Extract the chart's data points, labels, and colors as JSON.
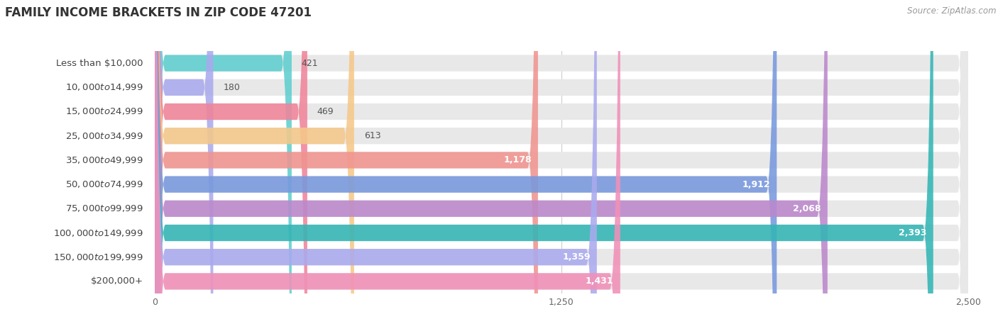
{
  "title": "FAMILY INCOME BRACKETS IN ZIP CODE 47201",
  "source": "Source: ZipAtlas.com",
  "categories": [
    "Less than $10,000",
    "$10,000 to $14,999",
    "$15,000 to $24,999",
    "$25,000 to $34,999",
    "$35,000 to $49,999",
    "$50,000 to $74,999",
    "$75,000 to $99,999",
    "$100,000 to $149,999",
    "$150,000 to $199,999",
    "$200,000+"
  ],
  "values": [
    421,
    180,
    469,
    613,
    1178,
    1912,
    2068,
    2393,
    1359,
    1431
  ],
  "bar_colors": [
    "#5ecece",
    "#aaaaee",
    "#f0849a",
    "#f5c88a",
    "#f09490",
    "#7799dd",
    "#bb88cc",
    "#33b5b5",
    "#aaaaee",
    "#f090b8"
  ],
  "bar_bg_color": "#e8e8e8",
  "xlim": [
    0,
    2500
  ],
  "xticks": [
    0,
    1250,
    2500
  ],
  "label_fontsize": 9.5,
  "value_fontsize": 9.0,
  "title_fontsize": 12,
  "source_fontsize": 8.5,
  "bar_height": 0.68,
  "value_threshold": 700
}
